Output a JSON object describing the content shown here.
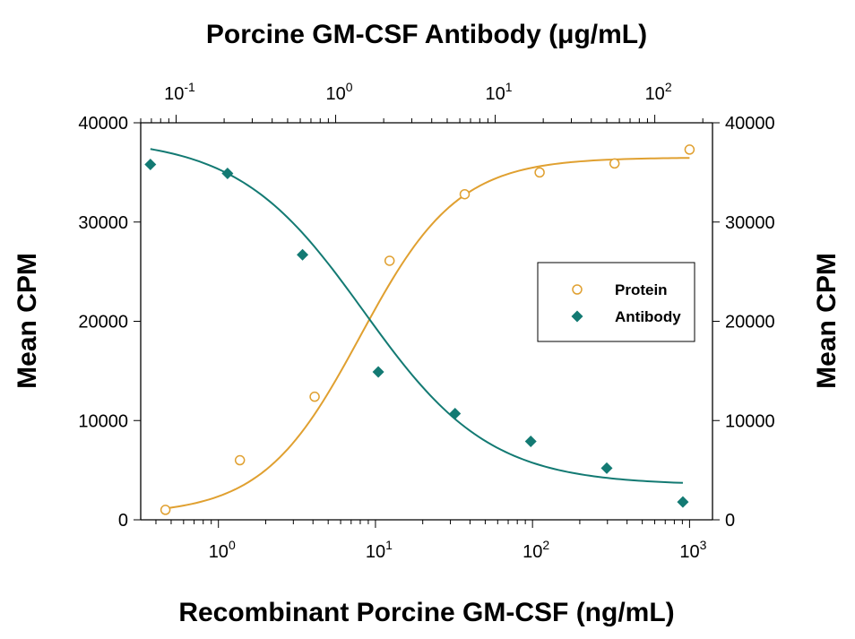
{
  "chart_data": {
    "type": "scatter",
    "title": "Porcine GM-CSF Antibody (μg/mL)",
    "xlabel": "Recombinant Porcine GM-CSF (ng/mL)",
    "ylabel": "Mean CPM",
    "ylabel_right": "Mean CPM",
    "x_scale": "log",
    "xlim": [
      0.32,
      1400
    ],
    "ylim": [
      0,
      40000
    ],
    "top_axis": {
      "label": "Porcine GM-CSF Antibody (μg/mL)",
      "scale": "log",
      "xlim": [
        0.06,
        230
      ],
      "ticks": [
        {
          "value": 0.1,
          "base": "10",
          "exp": "-1"
        },
        {
          "value": 1,
          "base": "10",
          "exp": "0"
        },
        {
          "value": 10,
          "base": "10",
          "exp": "1"
        },
        {
          "value": 100,
          "base": "10",
          "exp": "2"
        }
      ]
    },
    "x_ticks": [
      {
        "value": 1,
        "base": "10",
        "exp": "0"
      },
      {
        "value": 10,
        "base": "10",
        "exp": "1"
      },
      {
        "value": 100,
        "base": "10",
        "exp": "2"
      },
      {
        "value": 1000,
        "base": "10",
        "exp": "3"
      }
    ],
    "y_ticks": [
      "0",
      "10000",
      "20000",
      "30000",
      "40000"
    ],
    "legend": {
      "position": "right",
      "entries": [
        "Protein",
        "Antibody"
      ]
    },
    "grid": false,
    "series": [
      {
        "name": "Protein",
        "axis": "bottom",
        "marker": "open-circle",
        "color": "#e0a030",
        "x": [
          0.46,
          1.37,
          4.1,
          12.3,
          37,
          111,
          333,
          1000
        ],
        "y": [
          1000,
          6000,
          12400,
          26100,
          32800,
          35000,
          35900,
          37300
        ],
        "fit": {
          "bottom": 500,
          "top": 36500,
          "ec50": 8,
          "hill": 1.4
        }
      },
      {
        "name": "Antibody",
        "axis": "top",
        "marker": "filled-diamond",
        "color": "#137a73",
        "x": [
          0.069,
          0.21,
          0.62,
          1.85,
          5.6,
          16.7,
          50,
          150
        ],
        "y": [
          35800,
          34900,
          26700,
          14900,
          10700,
          7900,
          5200,
          1800
        ],
        "fit": {
          "bottom": 3500,
          "top": 38500,
          "ic50": 1.5,
          "hill": 1.1
        }
      }
    ]
  }
}
